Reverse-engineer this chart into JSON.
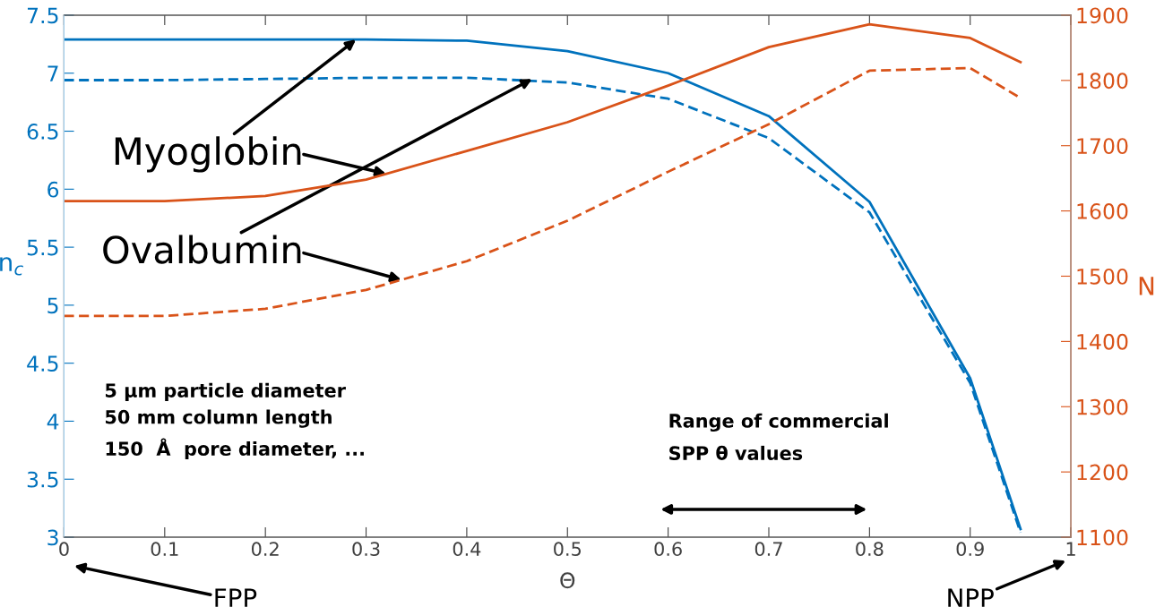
{
  "chart_data": {
    "type": "line",
    "xlabel": "Θ",
    "ylabel": "n$_{c}$",
    "y2label": "N",
    "x": [
      0,
      0.1,
      0.2,
      0.3,
      0.4,
      0.5,
      0.6,
      0.7,
      0.8,
      0.9,
      0.95
    ],
    "series": [
      {
        "color": "#0072bd",
        "line_style": "solid",
        "values": [
          7.29,
          7.29,
          7.29,
          7.29,
          7.28,
          7.19,
          7.0,
          6.63,
          5.89,
          4.37,
          3.07
        ]
      },
      {
        "color": "#0072bd",
        "line_style": "dashed",
        "values": [
          6.94,
          6.94,
          6.95,
          6.96,
          6.96,
          6.92,
          6.78,
          6.44,
          5.8,
          4.33,
          3.04
        ]
      },
      {
        "color": "#d95319",
        "line_style": "solid",
        "axis": "y2",
        "values": [
          1615,
          1615,
          1623,
          1648,
          1692,
          1736,
          1792,
          1851,
          1886,
          1865,
          1828
        ]
      },
      {
        "color": "#d95319",
        "line_style": "dashed",
        "axis": "y2",
        "values": [
          1439,
          1439,
          1450,
          1479,
          1523,
          1585,
          1660,
          1733,
          1815,
          1819,
          1773
        ]
      }
    ],
    "xlim": [
      0,
      1
    ],
    "xticks": [
      0,
      0.1,
      0.2,
      0.3,
      0.4,
      0.5,
      0.6,
      0.7,
      0.8,
      0.9,
      1
    ],
    "ylim": [
      3,
      7.5
    ],
    "yticks": [
      3,
      3.5,
      4,
      4.5,
      5,
      5.5,
      6,
      6.5,
      7,
      7.5
    ],
    "y2lim": [
      1100,
      1900
    ],
    "y2ticks": [
      1100,
      1200,
      1300,
      1400,
      1500,
      1600,
      1700,
      1800,
      1900
    ],
    "grid": false,
    "legend": false,
    "annotations": [
      {
        "text": "Myoglobin",
        "x": 0.29,
        "y": 7.29
      },
      {
        "text": "Ovalbumin",
        "x": 0.465,
        "y": 6.95
      },
      "5 µm particle diameter\n50 mm column length\n150  Å  pore diameter, ...",
      "Range of commercial\nSPP θ values",
      "FPP",
      "NPP"
    ]
  }
}
